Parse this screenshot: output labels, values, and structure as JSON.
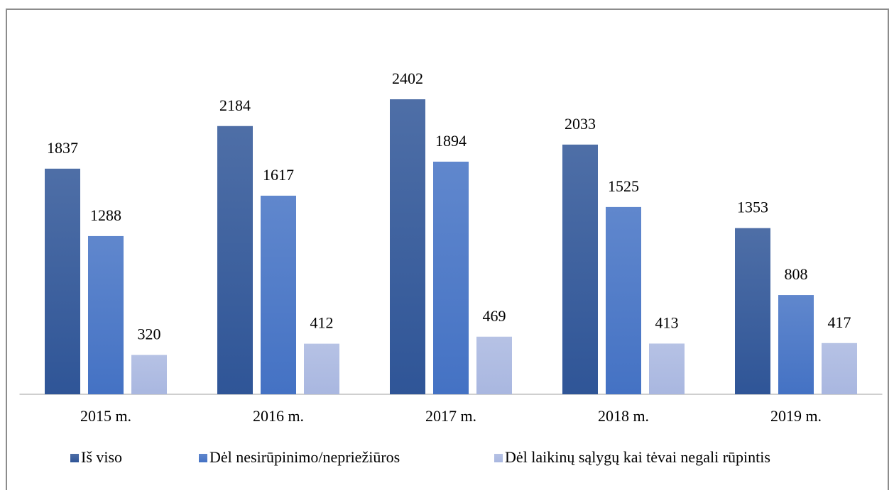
{
  "chart_data": {
    "type": "bar",
    "categories": [
      "2015 m.",
      "2016 m.",
      "2017 m.",
      "2018 m.",
      "2019 m."
    ],
    "series": [
      {
        "name": "Iš viso",
        "color": "#2f5597",
        "values": [
          1837,
          2184,
          2402,
          2033,
          1353
        ]
      },
      {
        "name": "Dėl nesirūpinimo/nepriežiūros",
        "color": "#4472c4",
        "values": [
          1288,
          1617,
          1894,
          1525,
          808
        ]
      },
      {
        "name": "Dėl laikinų sąlygų kai tėvai negali rūpintis",
        "color": "#a9b7e0",
        "values": [
          320,
          412,
          469,
          413,
          417
        ]
      }
    ],
    "legend": "bottom"
  }
}
